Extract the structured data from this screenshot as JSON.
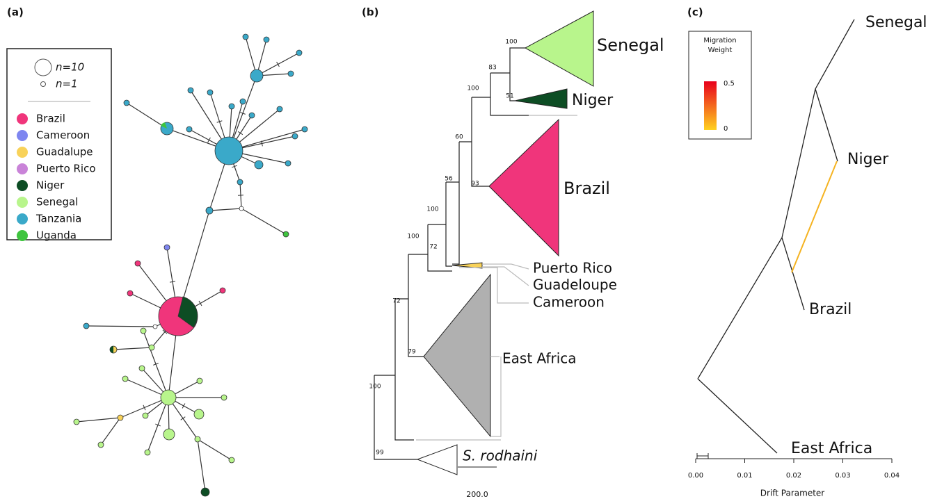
{
  "panels": [
    {
      "label": "(a)",
      "legend": {
        "sizes": [
          "n=10",
          "n=1"
        ],
        "entries": [
          {
            "name": "Brazil",
            "color": "#f0357b"
          },
          {
            "name": "Cameroon",
            "color": "#7e86f0"
          },
          {
            "name": "Guadalupe",
            "color": "#f8d25a"
          },
          {
            "name": "Puerto Rico",
            "color": "#c983d8"
          },
          {
            "name": "Niger",
            "color": "#0d4d24"
          },
          {
            "name": "Senegal",
            "color": "#b8f58c"
          },
          {
            "name": "Tanzania",
            "color": "#3aa9c9"
          },
          {
            "name": "Uganda",
            "color": "#3fc43f"
          }
        ]
      }
    },
    {
      "label": "(b)",
      "clades": [
        "Senegal",
        "Niger",
        "Brazil",
        "Puerto Rico",
        "Guadeloupe",
        "Cameroon",
        "East Africa",
        "S. rodhaini"
      ],
      "bootstrap": [
        "100",
        "83",
        "51",
        "100",
        "60",
        "93",
        "56",
        "100",
        "100",
        "72",
        "72",
        "79",
        "100",
        "99"
      ],
      "scale": "200.0"
    },
    {
      "label": "(c)",
      "legend_title": [
        "Migration",
        "Weight"
      ],
      "legend_ticks": [
        "0.5",
        "0"
      ],
      "populations": [
        {
          "name": "Senegal",
          "color": "#a6e07a"
        },
        {
          "name": "Niger",
          "color": "#0d4d24"
        },
        {
          "name": "Brazil",
          "color": "#e8336f"
        },
        {
          "name": "East Africa",
          "color": "#a9a9a9"
        }
      ],
      "x_ticks": [
        "0.00",
        "0.01",
        "0.02",
        "0.03",
        "0.04"
      ],
      "x_label": "Drift Parameter"
    }
  ]
}
